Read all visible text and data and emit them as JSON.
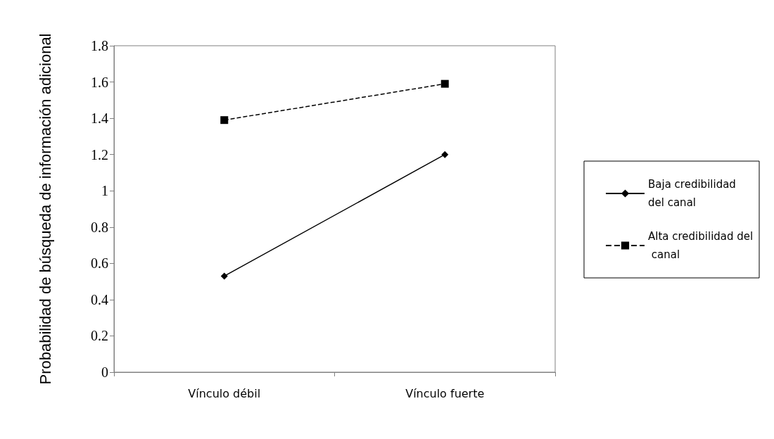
{
  "chart_data": {
    "type": "line",
    "ylabel": "Probabilidad de búsqueda de información adicional",
    "categories": [
      "Vínculo débil",
      "Vínculo fuerte"
    ],
    "series": [
      {
        "name": "Baja credibilidad del canal",
        "color": "#000000",
        "values": [
          0.53,
          1.2
        ],
        "marker": "diamond",
        "line_style": "solid"
      },
      {
        "name": "Alta credibilidad del canal",
        "color": "#000000",
        "values": [
          1.39,
          1.59
        ],
        "marker": "square",
        "line_style": "dashed"
      }
    ],
    "ylim": [
      0,
      1.8
    ],
    "yticks": [
      0,
      0.2,
      0.4,
      0.6,
      0.8,
      1,
      1.2,
      1.4,
      1.6,
      1.8
    ],
    "grid": false,
    "legend": "right"
  }
}
